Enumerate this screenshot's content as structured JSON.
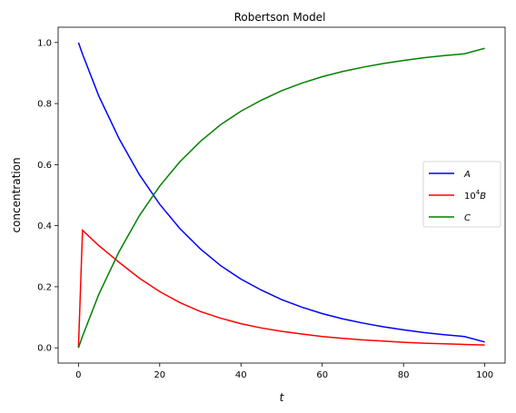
{
  "chart_data": {
    "type": "line",
    "title": "Robertson Model",
    "xlabel": "t",
    "ylabel": "concentration",
    "xlim": [
      -5,
      105
    ],
    "ylim": [
      -0.05,
      1.05
    ],
    "xticks": [
      0,
      20,
      40,
      60,
      80,
      100
    ],
    "yticks": [
      0.0,
      0.2,
      0.4,
      0.6,
      0.8,
      1.0
    ],
    "grid": false,
    "legend_position": "center-right",
    "x": [
      0,
      1,
      5,
      10,
      15,
      20,
      25,
      30,
      35,
      40,
      45,
      50,
      55,
      60,
      65,
      70,
      75,
      80,
      85,
      90,
      95,
      100
    ],
    "series": [
      {
        "name": "A",
        "legend_parts": [
          "",
          "A"
        ],
        "color": "#0000ff",
        "values": [
          1.0,
          0.962,
          0.825,
          0.685,
          0.567,
          0.47,
          0.39,
          0.324,
          0.269,
          0.225,
          0.189,
          0.158,
          0.133,
          0.112,
          0.095,
          0.081,
          0.069,
          0.059,
          0.05,
          0.043,
          0.037,
          0.019
        ]
      },
      {
        "name": "10^4B",
        "legend_parts": [
          "10",
          "4",
          "B"
        ],
        "color": "#ff0000",
        "values": [
          0.0,
          0.385,
          0.335,
          0.28,
          0.228,
          0.184,
          0.148,
          0.119,
          0.097,
          0.079,
          0.065,
          0.054,
          0.045,
          0.037,
          0.031,
          0.026,
          0.022,
          0.018,
          0.015,
          0.013,
          0.011,
          0.009
        ]
      },
      {
        "name": "C",
        "legend_parts": [
          "",
          "C"
        ],
        "color": "#008000",
        "values": [
          0.0,
          0.038,
          0.175,
          0.315,
          0.433,
          0.53,
          0.61,
          0.676,
          0.731,
          0.775,
          0.811,
          0.842,
          0.867,
          0.888,
          0.905,
          0.919,
          0.931,
          0.941,
          0.95,
          0.957,
          0.963,
          0.981
        ]
      }
    ]
  }
}
